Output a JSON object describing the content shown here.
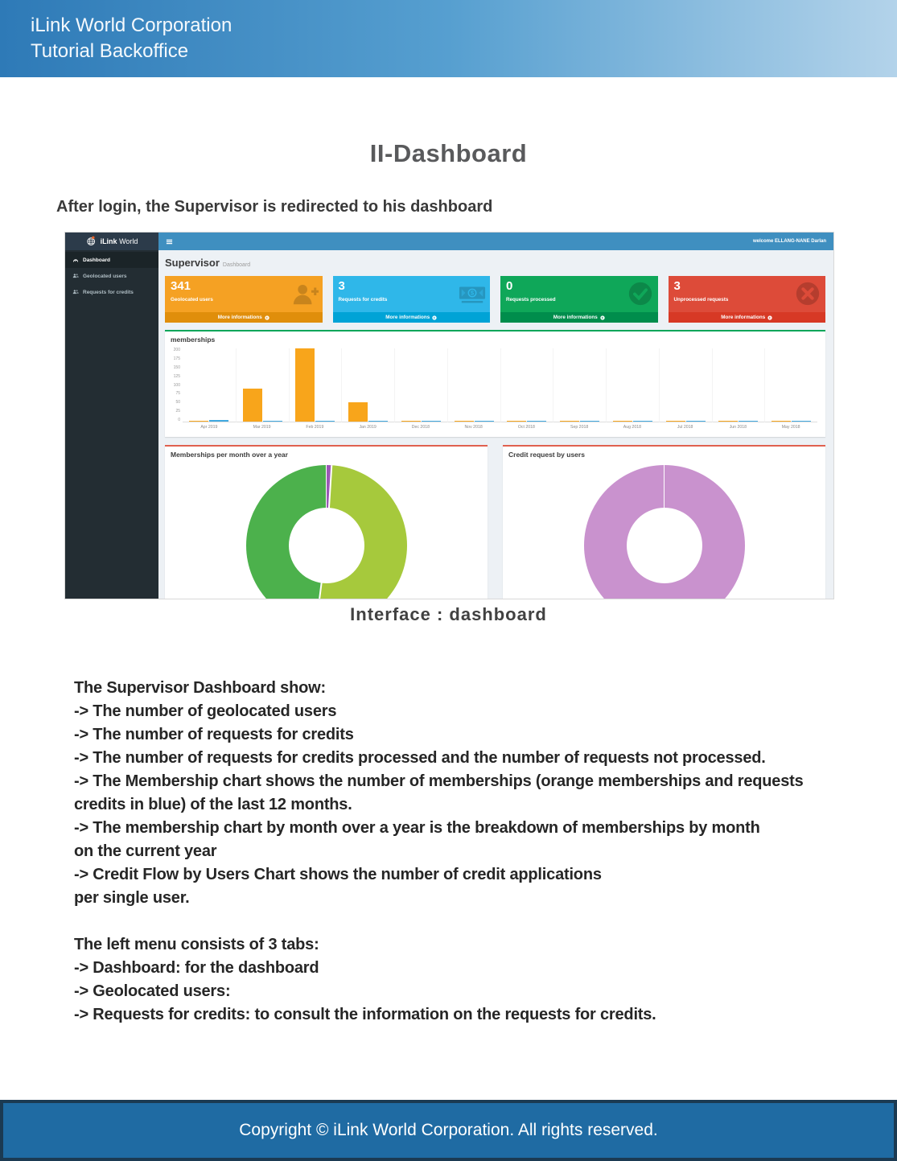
{
  "doc": {
    "header_line1": "iLink World Corporation",
    "header_line2": "Tutorial Backoffice",
    "title": "II-Dashboard",
    "intro": "After login, the Supervisor is redirected to his dashboard",
    "caption": "Interface : dashboard",
    "body_lines": [
      "The Supervisor Dashboard show:",
      "-> The number of geolocated users",
      "-> The number of requests for credits",
      "-> The number of requests for credits processed and the number of requests not processed.",
      "-> The Membership chart shows the number of memberships (orange memberships and requests",
      "credits in blue) of the last 12 months.",
      "-> The membership chart by month over a year is the breakdown of memberships by month",
      "on the current year",
      "-> Credit Flow by Users Chart shows the number of credit applications",
      "per single user.",
      "",
      "The left menu consists of 3 tabs:",
      "-> Dashboard: for the dashboard",
      "-> Geolocated users:",
      "-> Requests for credits: to consult the information on the requests for credits.",
      ""
    ],
    "footer": "Copyright © iLink World Corporation. All rights reserved."
  },
  "dashboard": {
    "brand_bold": "iLink",
    "brand_rest": "World",
    "welcome": "welcome ELLANG-NANE Darlan",
    "sidebar": [
      {
        "label": "Dashboard",
        "icon": "gauge-icon",
        "active": true
      },
      {
        "label": "Geolocated users",
        "icon": "users-icon",
        "active": false
      },
      {
        "label": "Requests for credits",
        "icon": "users-icon",
        "active": false
      }
    ],
    "heading_title": "Supervisor",
    "heading_sub": "Dashboard",
    "more_label": "More informations",
    "cards": [
      {
        "value": "341",
        "label": "Geolocated users",
        "icon": "user-plus-icon",
        "bg": "#f5a123",
        "footer_bg": "#e08e0b"
      },
      {
        "value": "3",
        "label": "Requests for credits",
        "icon": "money-icon",
        "bg": "#2fb7e9",
        "footer_bg": "#00a3d6"
      },
      {
        "value": "0",
        "label": "Requests processed",
        "icon": "check-circle-icon",
        "bg": "#0fa759",
        "footer_bg": "#008d4c"
      },
      {
        "value": "3",
        "label": "Unprocessed requests",
        "icon": "x-circle-icon",
        "bg": "#dd4b39",
        "footer_bg": "#d73925"
      }
    ]
  },
  "chart_data": [
    {
      "type": "bar",
      "title": "memberships",
      "categories": [
        "Apr 2019",
        "Mar 2019",
        "Feb 2019",
        "Jan 2019",
        "Dec 2018",
        "Nov 2018",
        "Oct 2018",
        "Sep 2018",
        "Aug 2018",
        "Jul 2018",
        "Jun 2018",
        "May 2018"
      ],
      "series": [
        {
          "name": "memberships",
          "color": "#f8a51b",
          "values": [
            1,
            90,
            198,
            52,
            2,
            3,
            2,
            2,
            2,
            2,
            2,
            2
          ]
        },
        {
          "name": "requests credits",
          "color": "#41a9e0",
          "values": [
            4,
            1,
            1,
            2,
            1,
            1,
            2,
            2,
            2,
            2,
            1,
            2
          ]
        }
      ],
      "xlabel": "",
      "ylabel": "",
      "ylim": [
        0,
        200
      ],
      "yticks": [
        0,
        25,
        50,
        75,
        100,
        125,
        150,
        175,
        200
      ],
      "grid": true,
      "legend": "none"
    },
    {
      "type": "pie",
      "subtype": "donut",
      "title": "Memberships per month over a year",
      "segments": [
        {
          "color": "#9b59b6",
          "value": 1
        },
        {
          "color": "#a6c93c",
          "value": 51
        },
        {
          "color": "#4cb14c",
          "value": 48
        }
      ]
    },
    {
      "type": "pie",
      "subtype": "donut",
      "title": "Credit request by users",
      "segments": [
        {
          "color": "#c992ce",
          "value": 100
        }
      ]
    }
  ]
}
